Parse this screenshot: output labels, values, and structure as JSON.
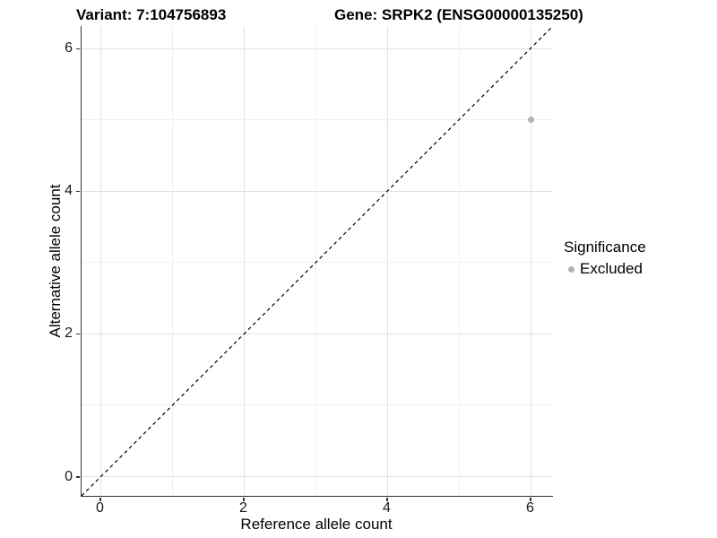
{
  "chart_data": {
    "type": "scatter",
    "title_left": "Variant: 7:104756893",
    "title_right": "Gene: SRPK2 (ENSG00000135250)",
    "xlabel": "Reference allele count",
    "ylabel": "Alternative allele count",
    "xlim": [
      -0.27,
      6.31
    ],
    "ylim": [
      -0.27,
      6.31
    ],
    "x_ticks": [
      0,
      2,
      4,
      6
    ],
    "y_ticks": [
      0,
      2,
      4,
      6
    ],
    "x_minor_ticks": [
      1,
      3,
      5
    ],
    "y_minor_ticks": [
      1,
      3,
      5
    ],
    "grid": true,
    "reference_line": {
      "kind": "identity y=x",
      "style": "dashed",
      "color": "#000000"
    },
    "series": [
      {
        "name": "Excluded",
        "color": "#b3b3b3",
        "points": [
          {
            "x": 6,
            "y": 5
          }
        ]
      }
    ],
    "legend": {
      "title": "Significance",
      "position": "right",
      "items": [
        {
          "label": "Excluded",
          "color": "#b3b3b3"
        }
      ]
    }
  }
}
